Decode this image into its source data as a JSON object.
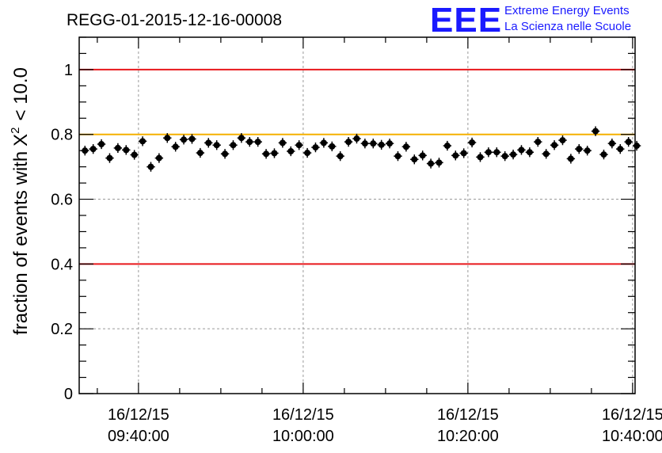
{
  "chart_data": {
    "type": "scatter",
    "title": "REGG-01-2015-12-16-00008",
    "ylabel_prefix": "fraction of events with",
    "ylabel_symbol": "X",
    "ylabel_exponent": "2",
    "ylabel_suffix": "< 10.0",
    "xlabel": "",
    "ylim": [
      0,
      1.1
    ],
    "y_ticks": [
      {
        "value": 0,
        "label": "0"
      },
      {
        "value": 0.2,
        "label": "0.2"
      },
      {
        "value": 0.4,
        "label": "0.4"
      },
      {
        "value": 0.6,
        "label": "0.6"
      },
      {
        "value": 0.8,
        "label": "0.8"
      },
      {
        "value": 1.0,
        "label": "1"
      }
    ],
    "x_range_minutes": [
      -7.2,
      60.3
    ],
    "x_ticks": [
      {
        "minutes": 0,
        "date": "16/12/15",
        "time": "09:40:00"
      },
      {
        "minutes": 20,
        "date": "16/12/15",
        "time": "10:00:00"
      },
      {
        "minutes": 40,
        "date": "16/12/15",
        "time": "10:20:00"
      },
      {
        "minutes": 60,
        "date": "16/12/15",
        "time": "10:40:00"
      }
    ],
    "x_minor_step_minutes": 5,
    "reference_lines": [
      {
        "y": 1.0,
        "color": "#e8171c"
      },
      {
        "y": 0.8,
        "color": "#f5b000"
      },
      {
        "y": 0.4,
        "color": "#e8171c"
      }
    ],
    "grid": true,
    "points": [
      0.75,
      0.755,
      0.77,
      0.727,
      0.758,
      0.752,
      0.737,
      0.779,
      0.7,
      0.727,
      0.789,
      0.762,
      0.784,
      0.786,
      0.743,
      0.774,
      0.767,
      0.74,
      0.767,
      0.789,
      0.777,
      0.777,
      0.74,
      0.742,
      0.774,
      0.748,
      0.767,
      0.743,
      0.76,
      0.774,
      0.763,
      0.733,
      0.777,
      0.787,
      0.772,
      0.772,
      0.768,
      0.772,
      0.733,
      0.762,
      0.723,
      0.735,
      0.71,
      0.713,
      0.765,
      0.735,
      0.742,
      0.775,
      0.73,
      0.745,
      0.745,
      0.733,
      0.738,
      0.752,
      0.745,
      0.777,
      0.74,
      0.767,
      0.782,
      0.725,
      0.755,
      0.75,
      0.81,
      0.738,
      0.772,
      0.755,
      0.777,
      0.765
    ],
    "point_x_start_minutes": -6.5,
    "point_x_step_minutes": 1.0,
    "error_y": 0.015,
    "error_x_minutes": 0.5
  },
  "logo": {
    "mark": "EEE",
    "line1": "Extreme Energy Events",
    "line2": "La Scienza nelle Scuole",
    "color": "#1a1aff"
  }
}
